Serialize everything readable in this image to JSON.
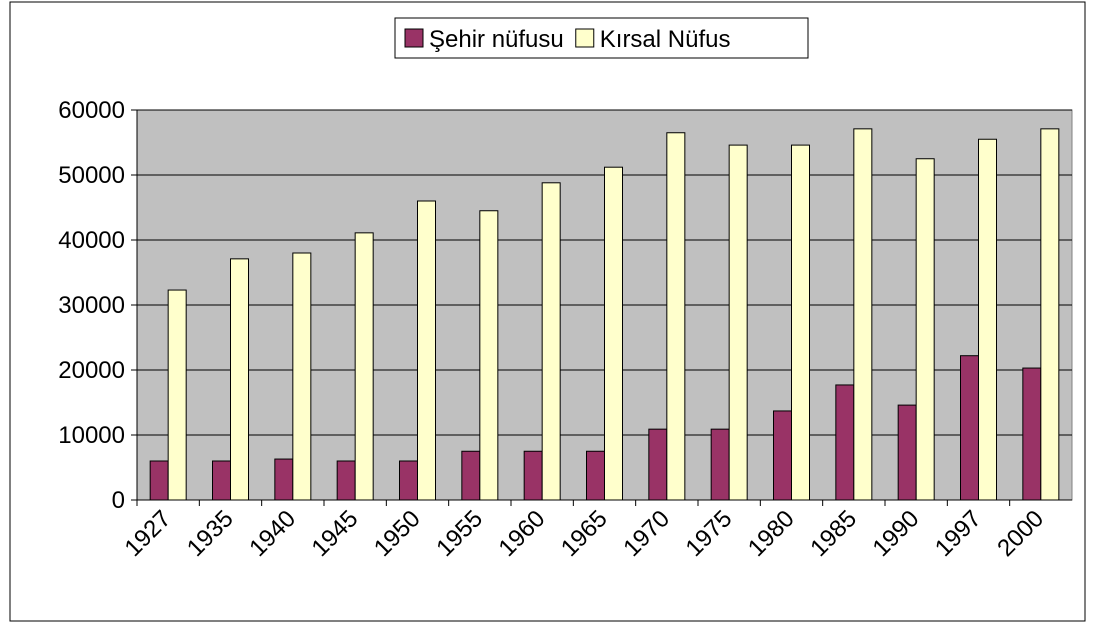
{
  "chart_data": {
    "type": "bar",
    "categories": [
      "1927",
      "1935",
      "1940",
      "1945",
      "1950",
      "1955",
      "1960",
      "1965",
      "1970",
      "1975",
      "1980",
      "1985",
      "1990",
      "1997",
      "2000"
    ],
    "series": [
      {
        "name": "Şehir nüfusu",
        "color": "#993366",
        "values": [
          6000,
          6000,
          6300,
          6000,
          6000,
          7500,
          7500,
          7500,
          10900,
          10900,
          13700,
          17700,
          14600,
          22200,
          20300
        ]
      },
      {
        "name": "Kırsal Nüfus",
        "color": "#ffffcc",
        "values": [
          32300,
          37100,
          38000,
          41100,
          46000,
          44500,
          48800,
          51200,
          56500,
          54600,
          54600,
          57100,
          52500,
          55500,
          57100
        ]
      }
    ],
    "ylim": [
      0,
      60000
    ],
    "yticks": [
      0,
      10000,
      20000,
      30000,
      40000,
      50000,
      60000
    ],
    "grid": true,
    "legend": "top"
  }
}
